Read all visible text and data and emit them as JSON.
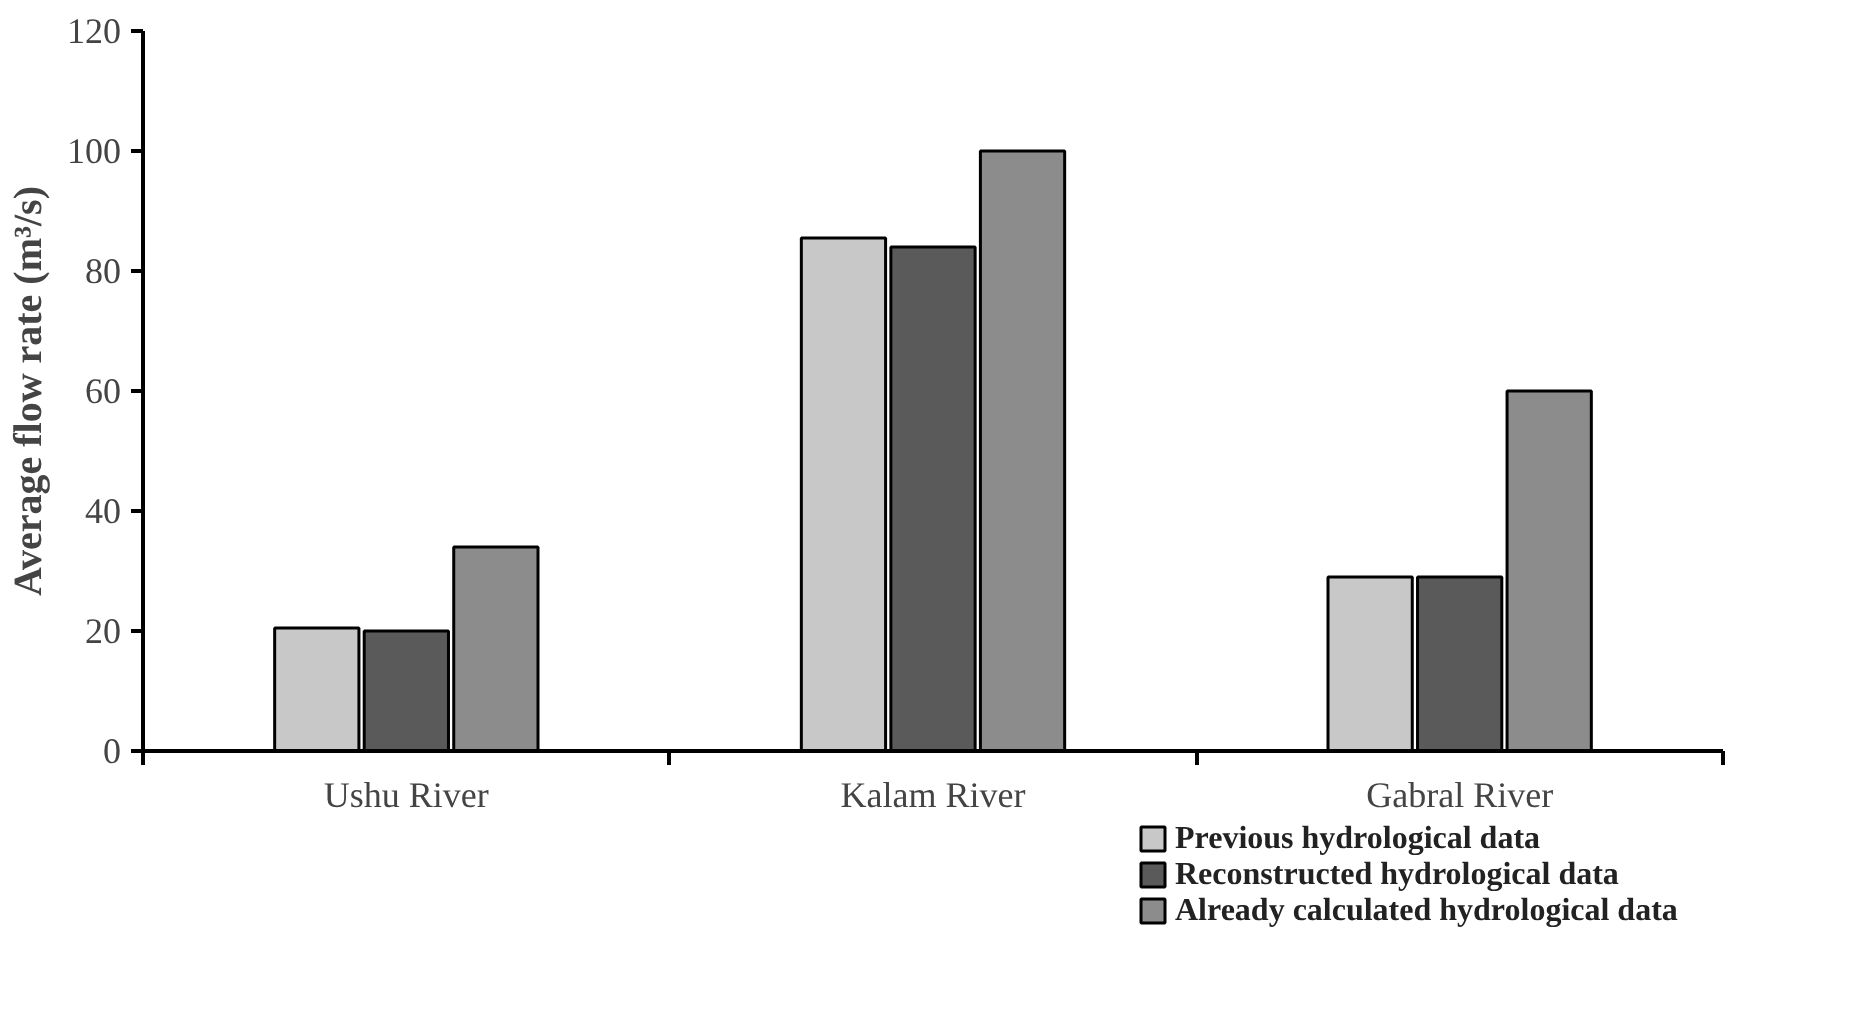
{
  "chart_data": {
    "type": "bar",
    "ylabel": "Average flow rate (m³/s)",
    "categories": [
      "Ushu River",
      "Kalam River",
      "Gabral River"
    ],
    "series": [
      {
        "name": "Previous hydrological data",
        "color": "#c8c8c8",
        "values": [
          20.5,
          85.5,
          29
        ]
      },
      {
        "name": "Reconstructed hydrological data",
        "color": "#5a5a5a",
        "values": [
          20,
          84,
          29
        ]
      },
      {
        "name": "Already calculated hydrological data",
        "color": "#8c8c8c",
        "values": [
          34,
          100,
          60
        ]
      }
    ],
    "ylim": [
      0,
      120
    ],
    "yticks": [
      0,
      20,
      40,
      60,
      80,
      100,
      120
    ],
    "grid": false,
    "legend": "bottom right"
  }
}
